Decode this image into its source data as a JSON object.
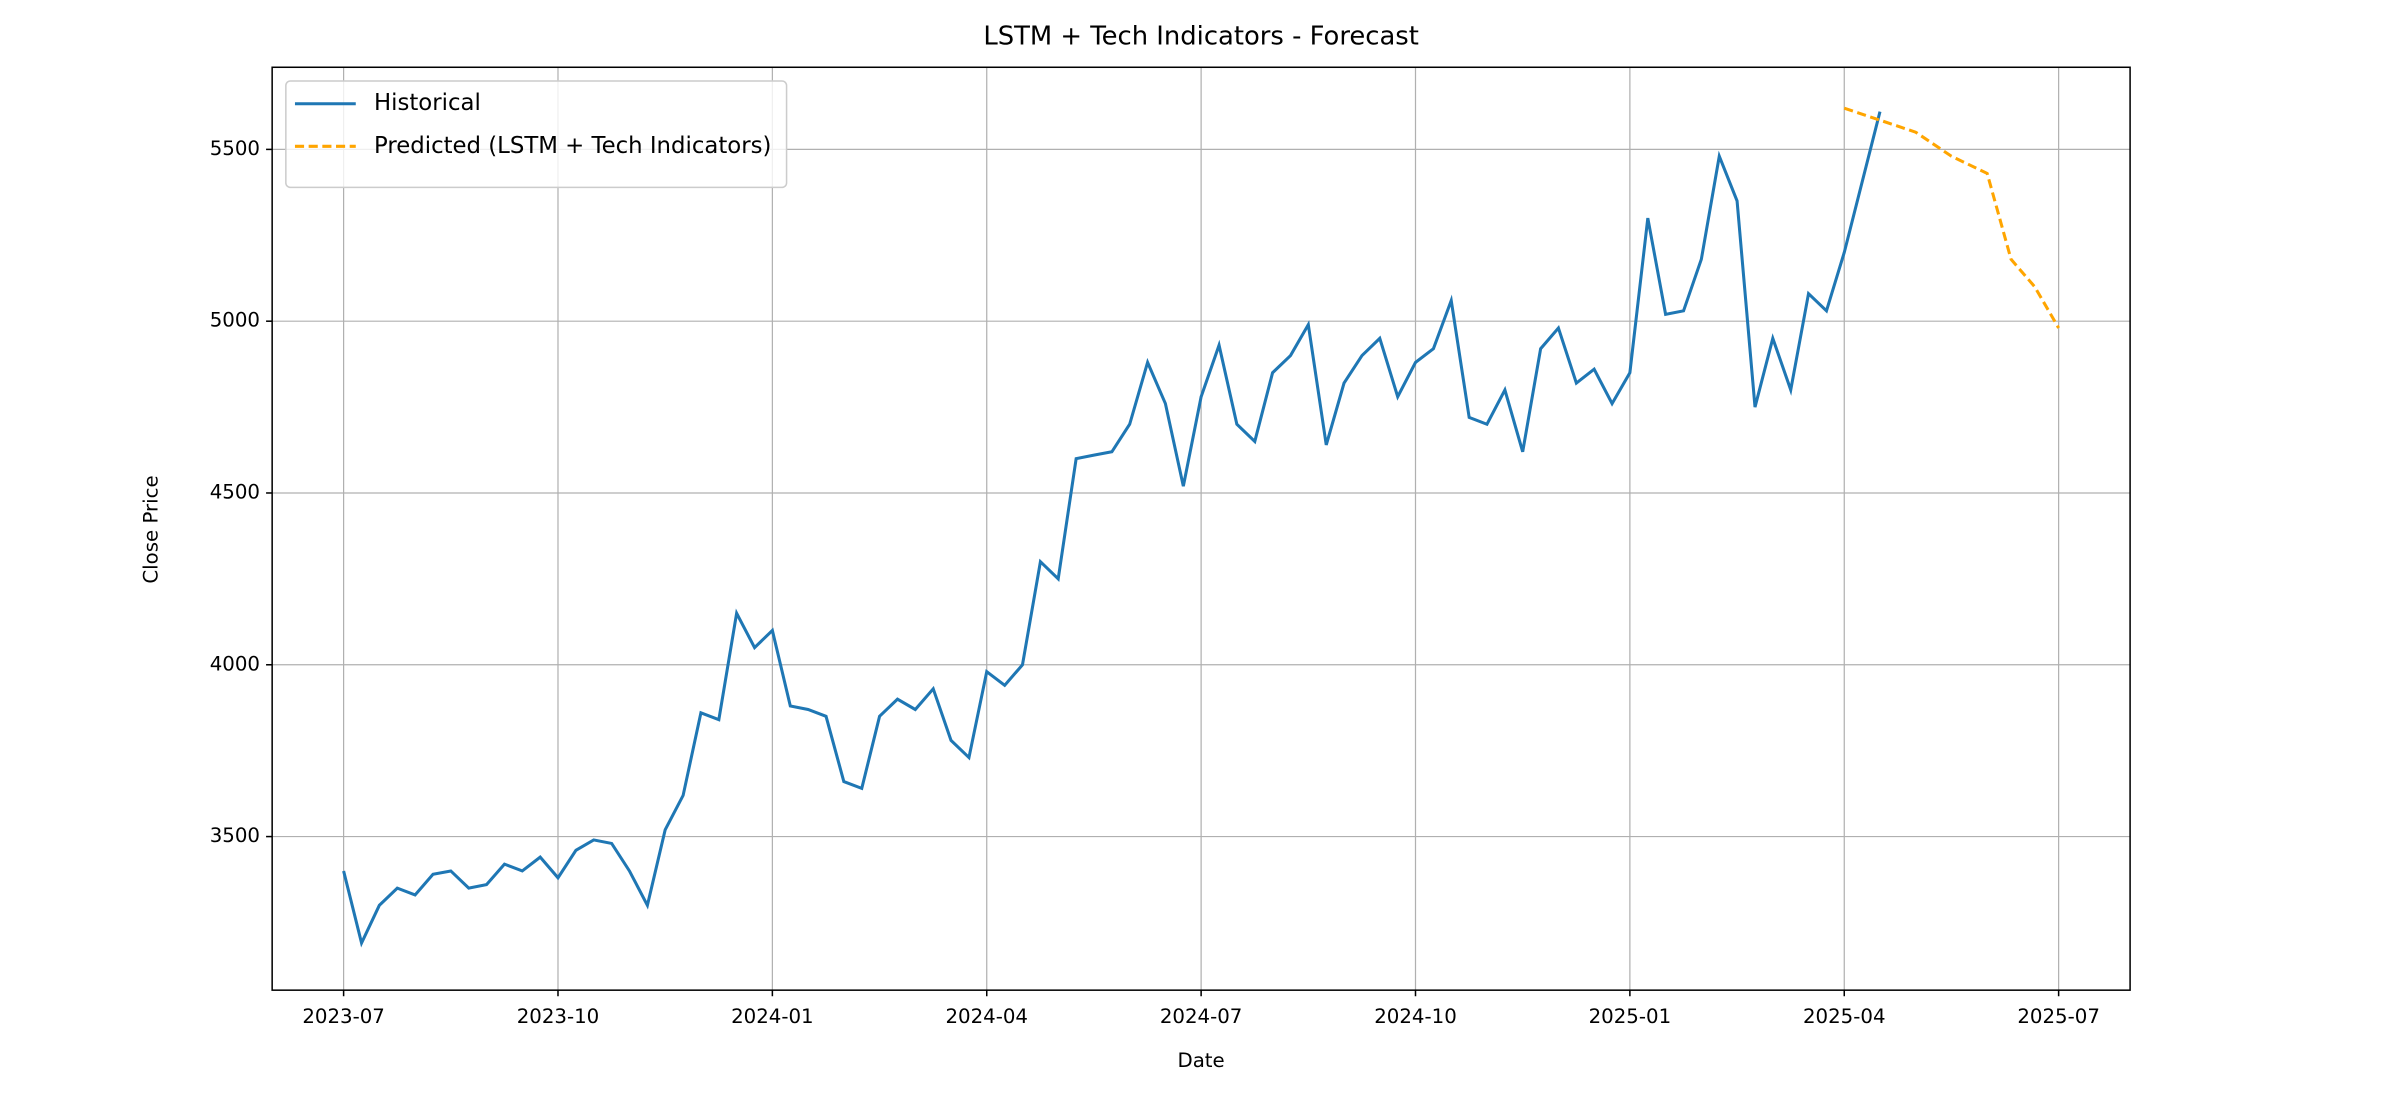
{
  "chart_data": {
    "type": "line",
    "title": "LSTM + Tech Indicators - Forecast",
    "x_label": "Date",
    "y_label": "Close Price",
    "grid": true,
    "legend": "upper left",
    "xlim": [
      "2023-06",
      "2025-08"
    ],
    "xticks": [
      "2023-07",
      "2023-10",
      "2024-01",
      "2024-04",
      "2024-07",
      "2024-10",
      "2025-01",
      "2025-04",
      "2025-07"
    ],
    "ylim": [
      3053,
      5739
    ],
    "yticks": [
      3500,
      4000,
      4500,
      5000,
      5500
    ],
    "series": [
      {
        "name": "Historical",
        "color": "#1f77b4",
        "linestyle": "solid",
        "x": [
          "2023-07",
          "2023-07",
          "2023-07",
          "2023-07",
          "2023-08",
          "2023-08",
          "2023-08",
          "2023-08",
          "2023-09",
          "2023-09",
          "2023-09",
          "2023-09",
          "2023-10",
          "2023-10",
          "2023-10",
          "2023-10",
          "2023-11",
          "2023-11",
          "2023-11",
          "2023-11",
          "2023-12",
          "2023-12",
          "2023-12",
          "2023-12",
          "2024-01",
          "2024-01",
          "2024-01",
          "2024-01",
          "2024-02",
          "2024-02",
          "2024-02",
          "2024-02",
          "2024-03",
          "2024-03",
          "2024-03",
          "2024-03",
          "2024-04",
          "2024-04",
          "2024-04",
          "2024-04",
          "2024-05",
          "2024-05",
          "2024-05",
          "2024-05",
          "2024-06",
          "2024-06",
          "2024-06",
          "2024-06",
          "2024-07",
          "2024-07",
          "2024-07",
          "2024-07",
          "2024-08",
          "2024-08",
          "2024-08",
          "2024-08",
          "2024-09",
          "2024-09",
          "2024-09",
          "2024-09",
          "2024-10",
          "2024-10",
          "2024-10",
          "2024-10",
          "2024-11",
          "2024-11",
          "2024-11",
          "2024-11",
          "2024-12",
          "2024-12",
          "2024-12",
          "2024-12",
          "2025-01",
          "2025-01",
          "2025-01",
          "2025-01",
          "2025-02",
          "2025-02",
          "2025-02",
          "2025-02",
          "2025-03",
          "2025-03",
          "2025-03",
          "2025-03",
          "2025-04",
          "2025-04"
        ],
        "values": [
          3400,
          3190,
          3300,
          3350,
          3330,
          3390,
          3400,
          3350,
          3360,
          3420,
          3400,
          3440,
          3380,
          3460,
          3490,
          3480,
          3400,
          3300,
          3520,
          3620,
          3860,
          3840,
          4150,
          4050,
          4100,
          3880,
          3870,
          3850,
          3660,
          3640,
          3850,
          3900,
          3870,
          3930,
          3780,
          3730,
          3980,
          3940,
          4000,
          4300,
          4250,
          4600,
          4610,
          4620,
          4700,
          4880,
          4760,
          4520,
          4780,
          4930,
          4700,
          4650,
          4850,
          4900,
          4990,
          4640,
          4820,
          4900,
          4950,
          4780,
          4880,
          4920,
          5060,
          4720,
          4700,
          4800,
          4620,
          4920,
          4980,
          4820,
          4860,
          4760,
          4850,
          5300,
          5020,
          5030,
          5180,
          5480,
          5350,
          4750,
          4950,
          4800,
          5080,
          5030,
          5200,
          5610
        ]
      },
      {
        "name": "Predicted (LSTM + Tech Indicators)",
        "color": "#ffa500",
        "linestyle": "dashed",
        "x": [
          "2025-04",
          "2025-05",
          "2025-05",
          "2025-06",
          "2025-06",
          "2025-06",
          "2025-07"
        ],
        "values": [
          5620,
          5550,
          5480,
          5430,
          5180,
          5100,
          4980
        ]
      }
    ]
  }
}
